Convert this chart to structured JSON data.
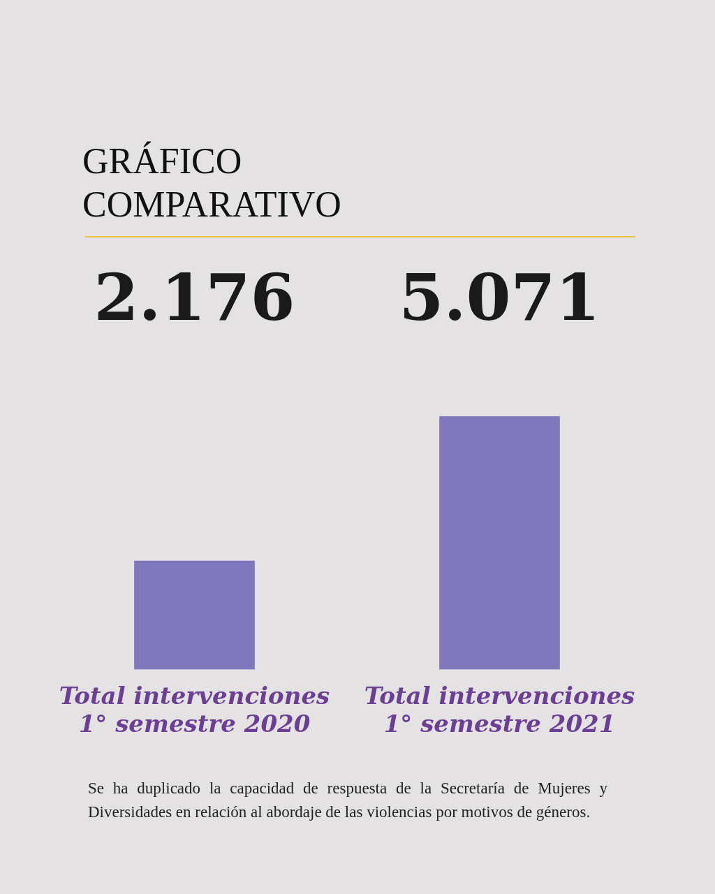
{
  "chart_data": {
    "type": "bar",
    "title": "GRÁFICO COMPARATIVO",
    "categories": [
      "Total intervenciones 1° semestre 2020",
      "Total intervenciones 1° semestre 2021"
    ],
    "values": [
      2176,
      5071
    ],
    "value_labels": [
      "2.176",
      "5.071"
    ],
    "color": "#8078bc",
    "grid": false,
    "legend": false,
    "annotations": [
      "Se ha duplicado la capacidad de respuesta de la Secretaría de Mujeres y Diversidades en relación al abordaje de las violencias por motivos de géneros."
    ]
  }
}
